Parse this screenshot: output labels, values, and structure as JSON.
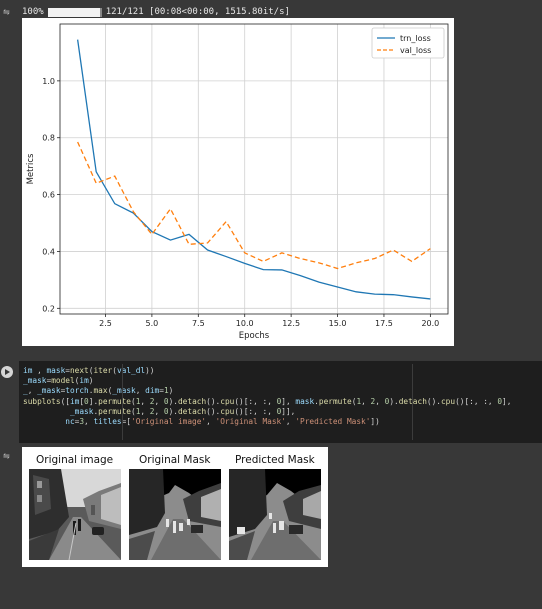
{
  "progress": {
    "percent_label": "100%",
    "fraction": 1.0,
    "count_label": "121/121",
    "timing_label": "[00:08<00:00, 1515.80it/s]"
  },
  "chart_data": {
    "type": "line",
    "xlabel": "Epochs",
    "ylabel": "Metrics",
    "xlim": [
      0.05,
      20.95
    ],
    "ylim": [
      0.18,
      1.2
    ],
    "xticks": [
      2.5,
      5.0,
      7.5,
      10.0,
      12.5,
      15.0,
      17.5,
      20.0
    ],
    "xtick_labels": [
      "2.5",
      "5.0",
      "7.5",
      "10.0",
      "12.5",
      "15.0",
      "17.5",
      "20.0"
    ],
    "yticks": [
      0.2,
      0.4,
      0.6,
      0.8,
      1.0
    ],
    "ytick_labels": [
      "0.2",
      "0.4",
      "0.6",
      "0.8",
      "1.0"
    ],
    "grid": true,
    "legend_position": "top-right",
    "x": [
      1,
      2,
      3,
      4,
      5,
      6,
      7,
      8,
      9,
      10,
      11,
      12,
      13,
      14,
      15,
      16,
      17,
      18,
      19,
      20
    ],
    "series": [
      {
        "name": "trn_loss",
        "color": "#1f77b4",
        "style": "solid",
        "values": [
          1.145,
          0.68,
          0.568,
          0.535,
          0.47,
          0.44,
          0.46,
          0.405,
          0.382,
          0.358,
          0.336,
          0.335,
          0.315,
          0.292,
          0.275,
          0.258,
          0.25,
          0.248,
          0.24,
          0.233
        ]
      },
      {
        "name": "val_loss",
        "color": "#ff7f0e",
        "style": "dashed",
        "values": [
          0.785,
          0.64,
          0.665,
          0.54,
          0.46,
          0.55,
          0.425,
          0.43,
          0.505,
          0.395,
          0.365,
          0.395,
          0.375,
          0.36,
          0.34,
          0.36,
          0.375,
          0.405,
          0.365,
          0.41
        ]
      }
    ]
  },
  "code": {
    "lines": [
      "im , mask=next(iter(val_dl))",
      "_mask=model(im)",
      "_, _mask=torch.max(_mask, dim=1)",
      "subplots([im[0].permute(1, 2, 0).detach().cpu()[:, :, 0], mask.permute(1, 2, 0).detach().cpu()[:, :, 0],",
      "          _mask.permute(1, 2, 0).detach().cpu()[:, :, 0]],",
      "         nc=3, titles=['Original image', 'Original Mask', 'Predicted Mask'])"
    ]
  },
  "output_images": {
    "titles": [
      "Original image",
      "Original Mask",
      "Predicted Mask"
    ]
  },
  "icons": {
    "output_toggle": "output-toggle-icon",
    "run": "run-cell-icon"
  }
}
